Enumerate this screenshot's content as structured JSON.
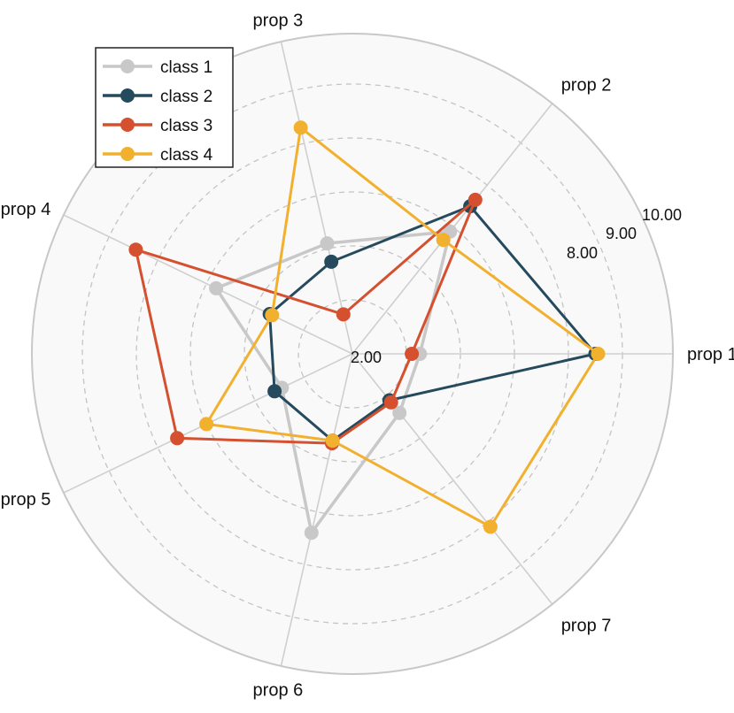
{
  "chart_data": {
    "type": "radar",
    "axes": [
      "prop 1",
      "prop 2",
      "prop 3",
      "prop 4",
      "prop 5",
      "prop 6",
      "prop 7"
    ],
    "radial_ticks": [
      "2.00",
      "8.00",
      "9.00",
      "10.00"
    ],
    "rmax_label": "10.00",
    "grid": true,
    "legend_position": "top-left",
    "series": [
      {
        "name": "class 1",
        "color": "#c8c8c8",
        "values": [
          2.5,
          5.8,
          4.2,
          5.6,
          2.9,
          6.8,
          2.8
        ]
      },
      {
        "name": "class 2",
        "color": "#254a5e",
        "values": [
          9.0,
          7.0,
          3.5,
          3.4,
          3.2,
          3.3,
          2.2
        ]
      },
      {
        "name": "class 3",
        "color": "#d4502f",
        "values": [
          2.2,
          7.3,
          1.5,
          8.9,
          7.2,
          3.4,
          2.3
        ]
      },
      {
        "name": "class 4",
        "color": "#f2b02f",
        "values": [
          9.1,
          5.4,
          8.6,
          3.3,
          6.0,
          3.3,
          8.2
        ]
      }
    ]
  }
}
